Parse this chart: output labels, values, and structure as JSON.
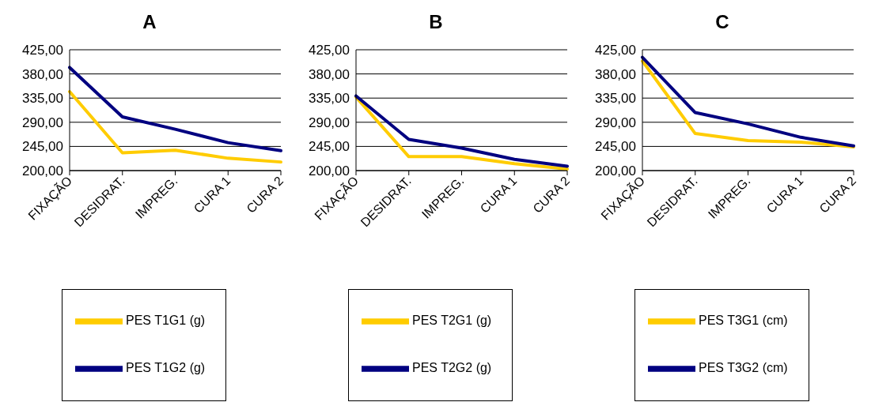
{
  "chart_data": [
    {
      "type": "line",
      "title": "A",
      "categories": [
        "FIXAÇÃO",
        "DESIDRAT.",
        "IMPREG.",
        "CURA 1",
        "CURA 2"
      ],
      "ylim": [
        200,
        425
      ],
      "yticks": [
        {
          "value": 200,
          "label": "200,00"
        },
        {
          "value": 245,
          "label": "245,00"
        },
        {
          "value": 290,
          "label": "290,00"
        },
        {
          "value": 335,
          "label": "335,00"
        },
        {
          "value": 380,
          "label": "380,00"
        },
        {
          "value": 425,
          "label": "425,00"
        }
      ],
      "grid": "y",
      "legend": "bottom",
      "marker": "none",
      "line_style": "solid",
      "series": [
        {
          "name": "PES T1G1 (g)",
          "color": "#ffcc00",
          "values": [
            347,
            233,
            238,
            223,
            216
          ]
        },
        {
          "name": "PES T1G2 (g)",
          "color": "#000080",
          "values": [
            392,
            300,
            277,
            252,
            237
          ]
        }
      ]
    },
    {
      "type": "line",
      "title": "B",
      "categories": [
        "FIXAÇÃO",
        "DESIDRAT.",
        "IMPREG.",
        "CURA 1",
        "CURA 2"
      ],
      "ylim": [
        200,
        425
      ],
      "yticks": [
        {
          "value": 200,
          "label": "200,00"
        },
        {
          "value": 245,
          "label": "245,00"
        },
        {
          "value": 290,
          "label": "290,00"
        },
        {
          "value": 335,
          "label": "335,00"
        },
        {
          "value": 380,
          "label": "380,00"
        },
        {
          "value": 425,
          "label": "425,00"
        }
      ],
      "grid": "y",
      "legend": "bottom",
      "marker": "none",
      "line_style": "solid",
      "series": [
        {
          "name": "PES T2G1 (g)",
          "color": "#ffcc00",
          "values": [
            337,
            226,
            226,
            213,
            203
          ]
        },
        {
          "name": "PES T2G2 (g)",
          "color": "#000080",
          "values": [
            339,
            258,
            242,
            221,
            208
          ]
        }
      ]
    },
    {
      "type": "line",
      "title": "C",
      "categories": [
        "FIXAÇÃO",
        "DESIDRAT.",
        "IMPREG.",
        "CURA 1",
        "CURA 2"
      ],
      "ylim": [
        200,
        425
      ],
      "yticks": [
        {
          "value": 200,
          "label": "200,00"
        },
        {
          "value": 245,
          "label": "245,00"
        },
        {
          "value": 290,
          "label": "290,00"
        },
        {
          "value": 335,
          "label": "335,00"
        },
        {
          "value": 380,
          "label": "380,00"
        },
        {
          "value": 425,
          "label": "425,00"
        }
      ],
      "grid": "y",
      "legend": "bottom",
      "marker": "none",
      "line_style": "solid",
      "series": [
        {
          "name": "PES T3G1 (cm)",
          "color": "#ffcc00",
          "values": [
            404,
            269,
            256,
            253,
            244
          ]
        },
        {
          "name": "PES T3G2 (cm)",
          "color": "#000080",
          "values": [
            411,
            308,
            287,
            262,
            246
          ]
        }
      ]
    }
  ]
}
